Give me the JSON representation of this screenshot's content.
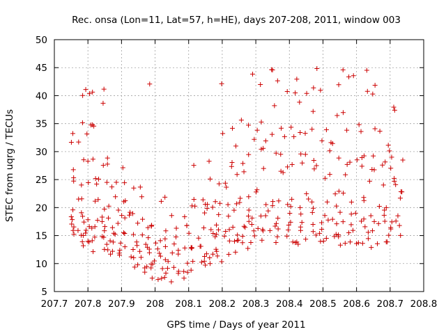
{
  "chart_data": {
    "type": "scatter",
    "title": "Rec. onsa (Lon=11, Lat=57, h=HE), days 207-208, 2011, window 003",
    "xlabel": "GPS time / Days of year 2011",
    "ylabel": "STEC from uqrg / TECUs",
    "xlim": [
      207.7,
      208.8
    ],
    "ylim": [
      5,
      50
    ],
    "xticks": [
      "207.7",
      "207.8",
      "207.9",
      "208",
      "208.1",
      "208.2",
      "208.3",
      "208.4",
      "208.5",
      "208.6",
      "208.7",
      "208.8"
    ],
    "yticks": [
      "5",
      "10",
      "15",
      "20",
      "25",
      "30",
      "35",
      "40",
      "45",
      "50"
    ],
    "grid": true,
    "marker": "+",
    "series": [
      {
        "color": "#cc0000",
        "bands": [
          {
            "x": [
              207.75,
              207.78,
              207.8,
              207.83,
              207.86,
              207.89,
              207.92,
              207.95,
              207.98,
              208.0,
              208.03,
              208.06,
              208.09,
              208.12,
              208.15,
              208.18,
              208.21,
              208.24,
              208.27,
              208.3,
              208.34,
              208.38,
              208.42,
              208.46,
              208.5,
              208.54,
              208.58,
              208.62,
              208.66,
              208.7,
              208.74
            ],
            "y": [
              15.0,
              14.0,
              13.5,
              13.5,
              13.0,
              12.5,
              11.5,
              10.0,
              9.0,
              8.0,
              7.5,
              8.0,
              9.0,
              10.0,
              10.5,
              11.0,
              12.5,
              13.5,
              14.0,
              15.0,
              15.0,
              15.5,
              15.0,
              15.0,
              15.0,
              15.0,
              14.5,
              14.0,
              14.5,
              15.5,
              15.5
            ],
            "spread": 1.6,
            "per": 4
          },
          {
            "x": [
              207.75,
              207.78,
              207.8,
              207.83,
              207.86,
              207.89,
              207.92,
              207.95,
              207.98,
              208.0,
              208.03,
              208.06,
              208.09,
              208.12,
              208.15,
              208.18,
              208.21,
              208.24,
              208.27,
              208.3,
              208.34,
              208.38,
              208.42,
              208.46,
              208.5,
              208.54,
              208.58,
              208.62,
              208.66,
              208.7,
              208.74
            ],
            "y": [
              17.0,
              16.5,
              16.0,
              16.0,
              15.0,
              15.0,
              14.0,
              13.0,
              12.0,
              11.5,
              11.5,
              12.0,
              13.0,
              13.5,
              14.5,
              15.0,
              16.0,
              16.5,
              17.0,
              17.5,
              18.0,
              18.0,
              17.5,
              17.5,
              17.5,
              17.0,
              17.0,
              16.5,
              17.0,
              17.5,
              17.5
            ],
            "spread": 1.5,
            "per": 3
          },
          {
            "x": [
              207.75,
              207.78,
              207.8,
              207.83,
              207.86,
              207.89,
              207.92,
              207.95,
              207.98,
              208.0,
              208.03,
              208.06,
              208.09,
              208.12,
              208.15,
              208.18,
              208.21,
              208.24,
              208.27,
              208.3,
              208.34,
              208.38,
              208.42,
              208.46,
              208.5,
              208.54,
              208.58,
              208.62,
              208.66,
              208.7,
              208.74
            ],
            "y": [
              20.5,
              19.5,
              19.0,
              19.0,
              18.5,
              18.0,
              17.0,
              16.0,
              15.5,
              15.0,
              15.0,
              15.5,
              16.5,
              17.5,
              18.5,
              19.0,
              19.5,
              20.0,
              20.5,
              21.0,
              21.5,
              21.5,
              21.0,
              21.0,
              21.0,
              21.0,
              20.5,
              20.0,
              20.5,
              21.0,
              21.5
            ],
            "spread": 2.2,
            "per": 3
          },
          {
            "x": [
              207.75,
              207.78,
              207.8,
              207.83,
              207.86,
              207.89,
              207.92,
              207.95,
              207.98,
              208.1,
              208.14,
              208.18,
              208.22,
              208.26,
              208.3,
              208.34,
              208.38,
              208.42,
              208.46,
              208.5,
              208.54,
              208.58,
              208.62,
              208.66,
              208.7,
              208.74
            ],
            "y": [
              27.0,
              26.5,
              25.5,
              24.0,
              23.0,
              23.0,
              22.0,
              21.0,
              20.5,
              21.0,
              22.0,
              24.0,
              25.5,
              27.0,
              28.5,
              28.5,
              28.0,
              27.5,
              27.5,
              27.5,
              27.0,
              26.5,
              26.0,
              26.0,
              26.5,
              27.0
            ],
            "spread": 3.0,
            "per": 3
          },
          {
            "x": [
              207.75,
              207.78,
              207.81,
              207.84,
              207.87,
              208.2,
              208.25,
              208.3,
              208.34,
              208.38,
              208.42,
              208.46,
              208.5,
              208.54,
              208.58,
              208.62,
              208.66,
              208.7,
              208.74
            ],
            "y": [
              33.0,
              32.0,
              31.5,
              31.0,
              30.5,
              31.0,
              33.0,
              34.5,
              35.5,
              36.0,
              35.5,
              35.0,
              35.0,
              34.0,
              33.0,
              32.0,
              31.0,
              30.5,
              30.0
            ],
            "spread": 3.5,
            "per": 3
          },
          {
            "x": [
              207.76,
              207.8,
              207.84,
              207.88,
              208.28,
              208.32,
              208.36,
              208.4,
              208.44,
              208.48,
              208.52,
              208.56,
              208.6,
              208.64,
              208.68,
              208.72
            ],
            "y": [
              40.5,
              40.0,
              41.0,
              39.0,
              46.0,
              41.5,
              44.0,
              43.0,
              42.5,
              42.0,
              41.0,
              45.5,
              44.0,
              42.0,
              43.5,
              39.5
            ],
            "spread": 3.0,
            "per": 2
          }
        ]
      }
    ]
  }
}
